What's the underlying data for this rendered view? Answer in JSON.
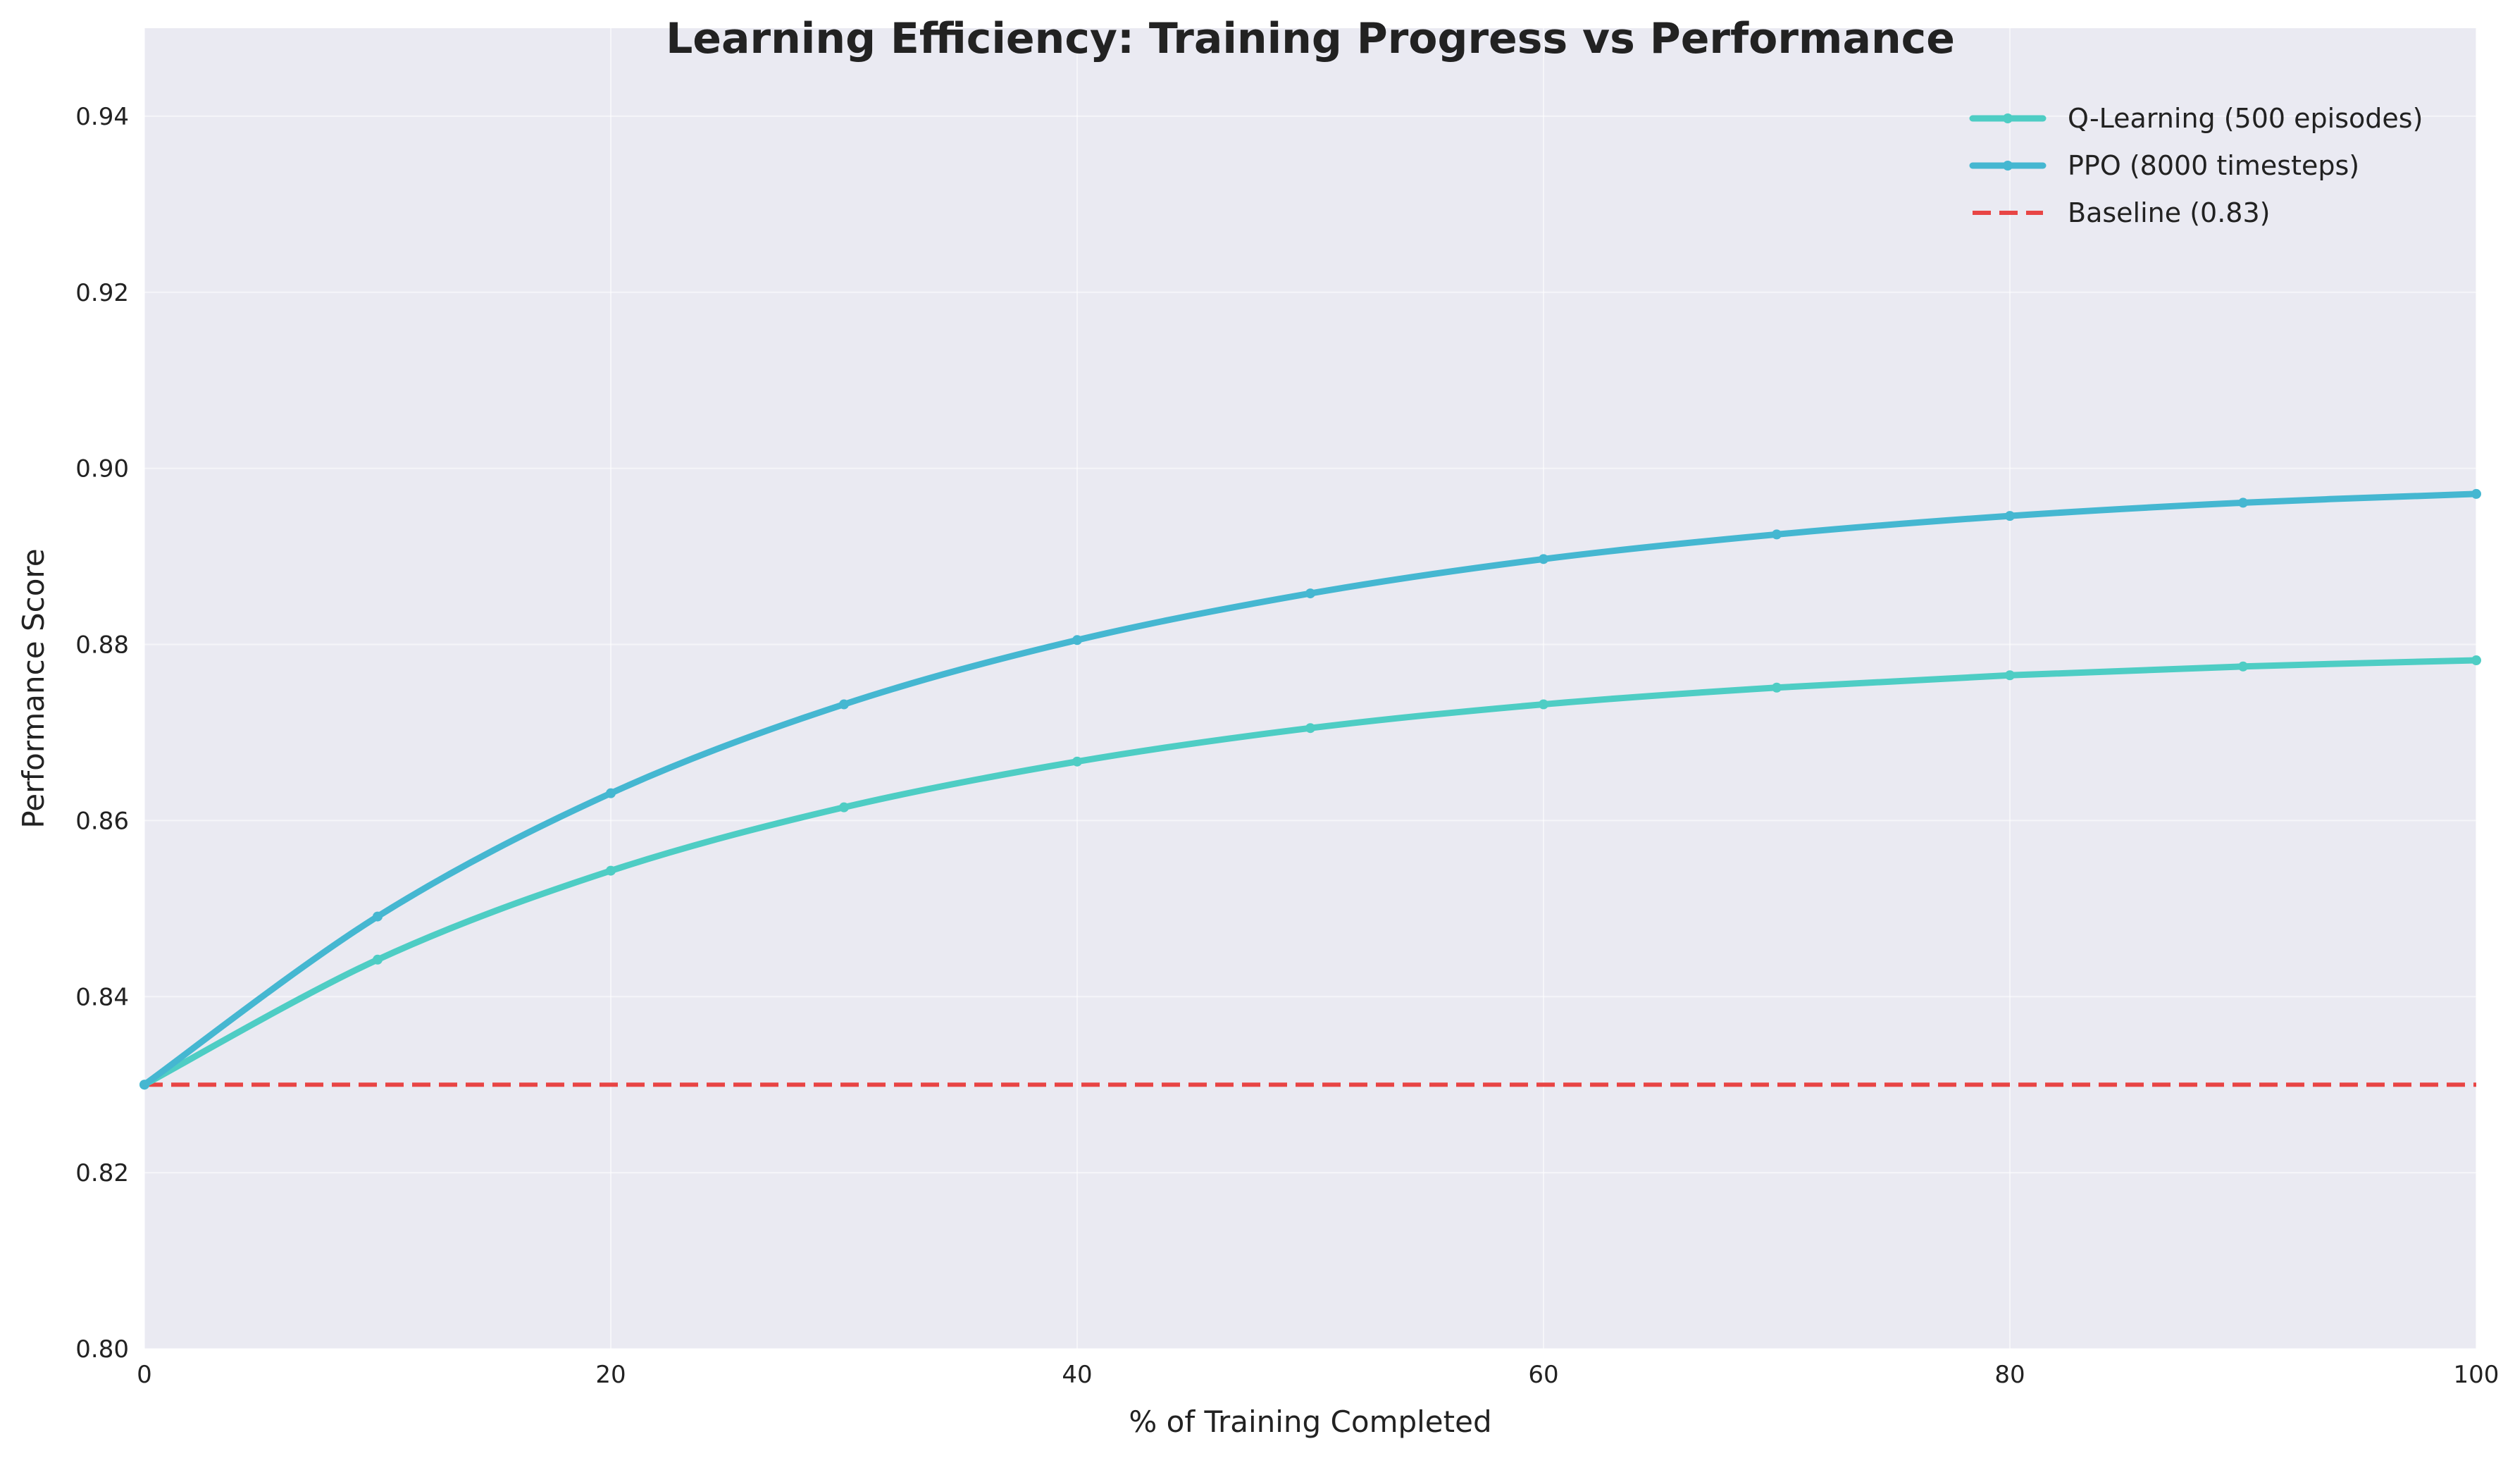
{
  "chart_data": {
    "type": "line",
    "title": "Learning Efficiency: Training Progress vs Performance",
    "xlabel": "% of Training Completed",
    "ylabel": "Performance Score",
    "xlim": [
      0,
      100
    ],
    "ylim": [
      0.8,
      0.95
    ],
    "xticks": [
      0,
      20,
      40,
      60,
      80,
      100
    ],
    "yticks": [
      0.8,
      0.82,
      0.84,
      0.86,
      0.88,
      0.9,
      0.92,
      0.94
    ],
    "grid": true,
    "legend_position": "top-right",
    "series": [
      {
        "name": "Q-Learning (500 episodes)",
        "color": "#4ecdc4",
        "style": "solid",
        "x": [
          0,
          10,
          20,
          30,
          40,
          50,
          60,
          70,
          80,
          90,
          100
        ],
        "y": [
          0.83,
          0.8442,
          0.8543,
          0.8615,
          0.8667,
          0.8705,
          0.8732,
          0.8751,
          0.8765,
          0.8775,
          0.8782
        ]
      },
      {
        "name": "PPO (8000 timesteps)",
        "color": "#45b7d1",
        "style": "solid",
        "x": [
          0,
          10,
          20,
          30,
          40,
          50,
          60,
          70,
          80,
          90,
          100
        ],
        "y": [
          0.83,
          0.8491,
          0.8631,
          0.8732,
          0.8805,
          0.8858,
          0.8897,
          0.8925,
          0.8946,
          0.8961,
          0.8971
        ]
      },
      {
        "name": "Baseline (0.83)",
        "color": "#e84545",
        "style": "dashed",
        "x": [
          0,
          100
        ],
        "y": [
          0.83,
          0.83
        ]
      }
    ]
  }
}
